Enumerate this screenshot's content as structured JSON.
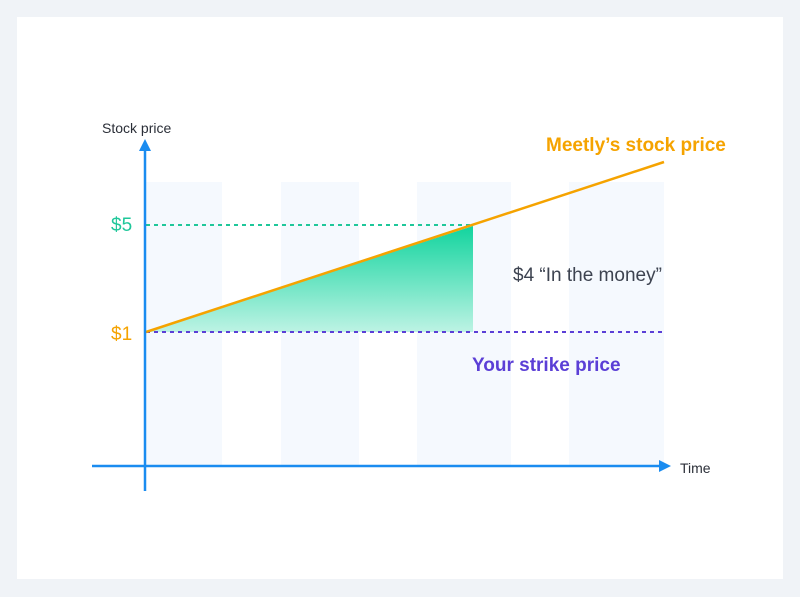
{
  "labels": {
    "y_axis": "Stock price",
    "x_axis": "Time",
    "price_high": "$5",
    "price_low": "$1",
    "stock_line": "Meetly’s stock price",
    "strike_line": "Your strike price",
    "in_the_money": "$4 “In the money”"
  },
  "colors": {
    "stock_line": "#f5a300",
    "strike_line": "#5b3fd6",
    "price_high": "#1fc79a",
    "axis": "#1a8cf0",
    "gain_fill_top": "#12d49e",
    "gain_fill_bottom": "#bdf3e4",
    "background_band": "#f5f9fe",
    "annotation_text": "#3d4350"
  }
}
